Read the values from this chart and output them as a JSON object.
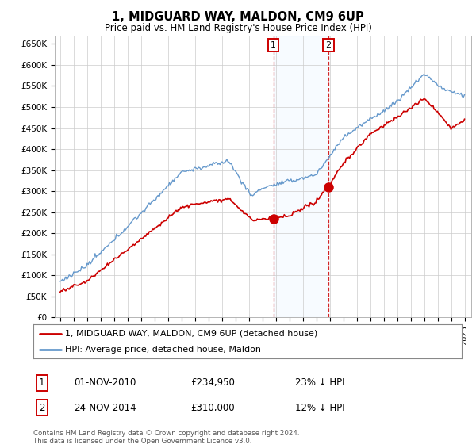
{
  "title": "1, MIDGUARD WAY, MALDON, CM9 6UP",
  "subtitle": "Price paid vs. HM Land Registry's House Price Index (HPI)",
  "ylim": [
    0,
    670000
  ],
  "yticks": [
    0,
    50000,
    100000,
    150000,
    200000,
    250000,
    300000,
    350000,
    400000,
    450000,
    500000,
    550000,
    600000,
    650000
  ],
  "ytick_labels": [
    "£0",
    "£50K",
    "£100K",
    "£150K",
    "£200K",
    "£250K",
    "£300K",
    "£350K",
    "£400K",
    "£450K",
    "£500K",
    "£550K",
    "£600K",
    "£650K"
  ],
  "sale1_date": 2010.83,
  "sale1_price": 234950,
  "sale2_date": 2014.9,
  "sale2_price": 310000,
  "line_red_color": "#cc0000",
  "line_blue_color": "#6699cc",
  "vline_color": "#cc0000",
  "shade_color": "#ddeeff",
  "legend_label_red": "1, MIDGUARD WAY, MALDON, CM9 6UP (detached house)",
  "legend_label_blue": "HPI: Average price, detached house, Maldon",
  "table_row1": [
    "1",
    "01-NOV-2010",
    "£234,950",
    "23% ↓ HPI"
  ],
  "table_row2": [
    "2",
    "24-NOV-2014",
    "£310,000",
    "12% ↓ HPI"
  ],
  "footnote": "Contains HM Land Registry data © Crown copyright and database right 2024.\nThis data is licensed under the Open Government Licence v3.0.",
  "background_color": "#ffffff",
  "grid_color": "#cccccc"
}
